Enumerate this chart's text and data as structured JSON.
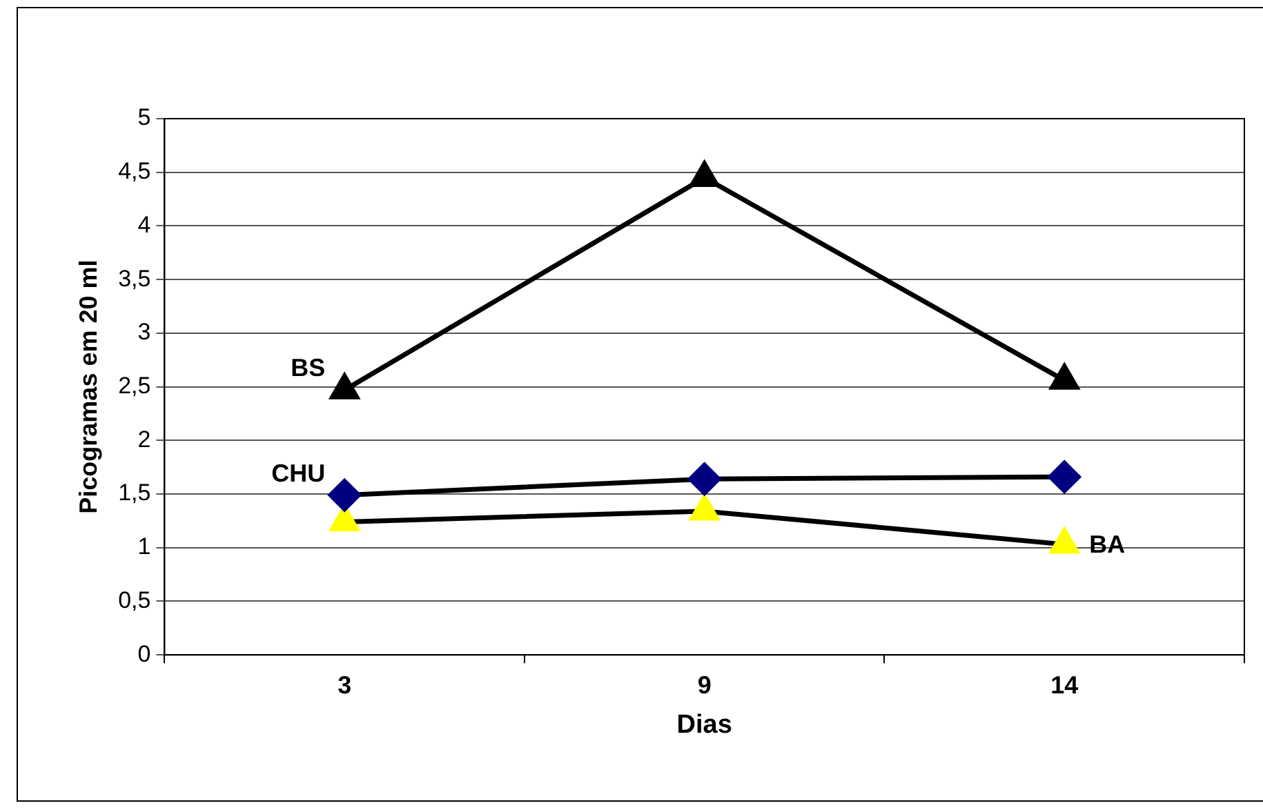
{
  "chart_data": {
    "type": "line",
    "xlabel": "Dias",
    "ylabel": "Picogramas em 20 ml",
    "categories": [
      "3",
      "9",
      "14"
    ],
    "series": [
      {
        "name": "BS",
        "color": "#000000",
        "marker": "triangle",
        "values": [
          2.47,
          4.45,
          2.56
        ]
      },
      {
        "name": "CHU",
        "color": "#000080",
        "marker": "diamond",
        "values": [
          1.49,
          1.64,
          1.66
        ]
      },
      {
        "name": "BA",
        "color": "#ffff00",
        "marker": "triangle",
        "values": [
          1.24,
          1.34,
          1.03
        ]
      }
    ],
    "ylim": [
      0,
      5
    ],
    "yticks": [
      0,
      {
        "value": 0.5,
        "label": "0,5"
      },
      1,
      {
        "value": 1.5,
        "label": "1,5"
      },
      2,
      {
        "value": 2.5,
        "label": "2,5"
      },
      3,
      {
        "value": 3.5,
        "label": "3,5"
      },
      4,
      {
        "value": 4.5,
        "label": "4,5"
      },
      5
    ],
    "grid": "y",
    "legend": false,
    "line_style": "solid"
  }
}
